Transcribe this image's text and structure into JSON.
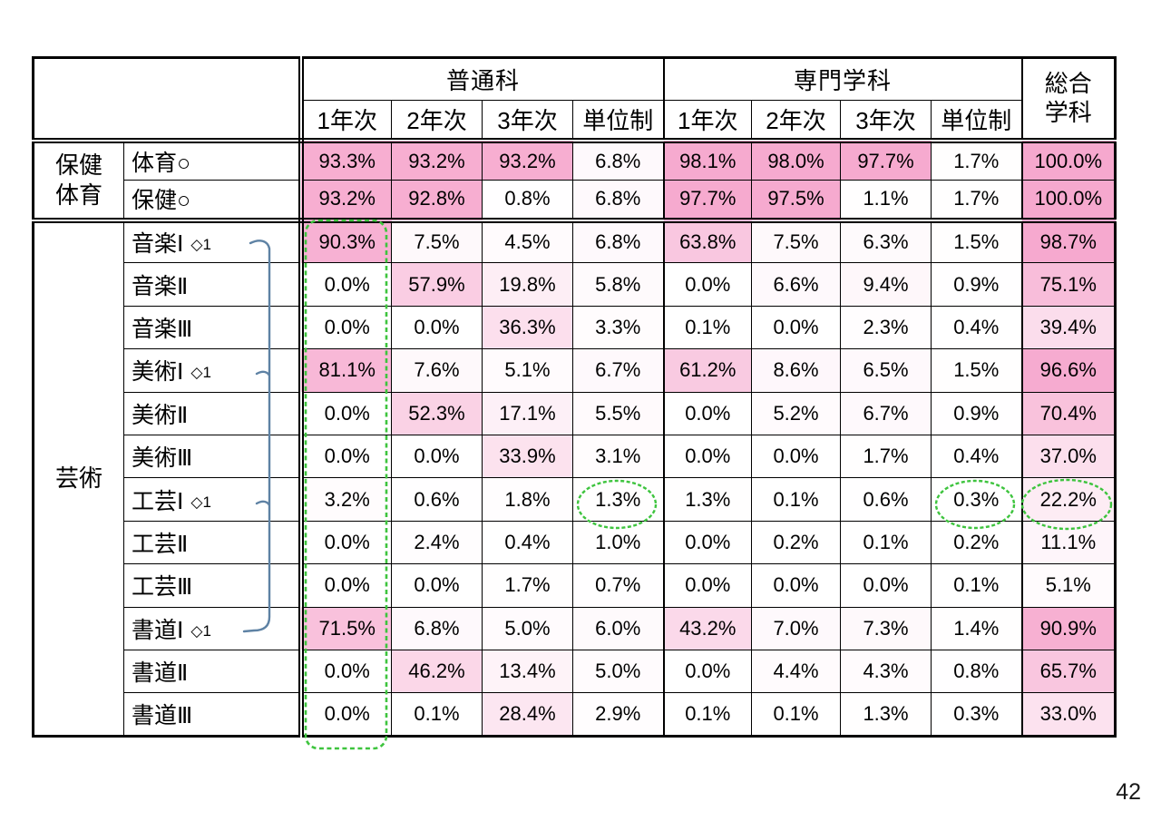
{
  "page": {
    "number": "42"
  },
  "table": {
    "heat_rgb": "246,168,206",
    "col_groups": [
      {
        "label": "普通科",
        "cols": [
          "1年次",
          "2年次",
          "3年次",
          "単位制"
        ]
      },
      {
        "label": "専門学科",
        "cols": [
          "1年次",
          "2年次",
          "3年次",
          "単位制"
        ]
      },
      {
        "label_line1": "総合",
        "label_line2": "学科"
      }
    ],
    "row_groups": [
      {
        "label_lines": [
          "保健",
          "体育"
        ],
        "rows": [
          {
            "label": "体育○",
            "values": [
              "93.3%",
              "93.2%",
              "93.2%",
              "6.8%",
              "98.1%",
              "98.0%",
              "97.7%",
              "1.7%",
              "100.0%"
            ]
          },
          {
            "label": "保健○",
            "values": [
              "93.2%",
              "92.8%",
              "0.8%",
              "6.8%",
              "97.7%",
              "97.5%",
              "1.1%",
              "1.7%",
              "100.0%"
            ]
          }
        ]
      },
      {
        "label_lines": [
          "芸術"
        ],
        "rows": [
          {
            "label": "音楽Ⅰ",
            "marker": "◇1",
            "values": [
              "90.3%",
              "7.5%",
              "4.5%",
              "6.8%",
              "63.8%",
              "7.5%",
              "6.3%",
              "1.5%",
              "98.7%"
            ]
          },
          {
            "label": "音楽Ⅱ",
            "values": [
              "0.0%",
              "57.9%",
              "19.8%",
              "5.8%",
              "0.0%",
              "6.6%",
              "9.4%",
              "0.9%",
              "75.1%"
            ]
          },
          {
            "label": "音楽Ⅲ",
            "values": [
              "0.0%",
              "0.0%",
              "36.3%",
              "3.3%",
              "0.1%",
              "0.0%",
              "2.3%",
              "0.4%",
              "39.4%"
            ]
          },
          {
            "label": "美術Ⅰ",
            "marker": "◇1",
            "values": [
              "81.1%",
              "7.6%",
              "5.1%",
              "6.7%",
              "61.2%",
              "8.6%",
              "6.5%",
              "1.5%",
              "96.6%"
            ]
          },
          {
            "label": "美術Ⅱ",
            "values": [
              "0.0%",
              "52.3%",
              "17.1%",
              "5.5%",
              "0.0%",
              "5.2%",
              "6.7%",
              "0.9%",
              "70.4%"
            ]
          },
          {
            "label": "美術Ⅲ",
            "values": [
              "0.0%",
              "0.0%",
              "33.9%",
              "3.1%",
              "0.0%",
              "0.0%",
              "1.7%",
              "0.4%",
              "37.0%"
            ]
          },
          {
            "label": "工芸Ⅰ",
            "marker": "◇1",
            "values": [
              "3.2%",
              "0.6%",
              "1.8%",
              "1.3%",
              "1.3%",
              "0.1%",
              "0.6%",
              "0.3%",
              "22.2%"
            ]
          },
          {
            "label": "工芸Ⅱ",
            "values": [
              "0.0%",
              "2.4%",
              "0.4%",
              "1.0%",
              "0.0%",
              "0.2%",
              "0.1%",
              "0.2%",
              "11.1%"
            ]
          },
          {
            "label": "工芸Ⅲ",
            "values": [
              "0.0%",
              "0.0%",
              "1.7%",
              "0.7%",
              "0.0%",
              "0.0%",
              "0.0%",
              "0.1%",
              "5.1%"
            ]
          },
          {
            "label": "書道Ⅰ",
            "marker": "◇1",
            "values": [
              "71.5%",
              "6.8%",
              "5.0%",
              "6.0%",
              "43.2%",
              "7.0%",
              "7.3%",
              "1.4%",
              "90.9%"
            ]
          },
          {
            "label": "書道Ⅱ",
            "values": [
              "0.0%",
              "46.2%",
              "13.4%",
              "5.0%",
              "0.0%",
              "4.4%",
              "4.3%",
              "0.8%",
              "65.7%"
            ]
          },
          {
            "label": "書道Ⅲ",
            "values": [
              "0.0%",
              "0.1%",
              "28.4%",
              "2.9%",
              "0.1%",
              "0.1%",
              "1.3%",
              "0.3%",
              "33.0%"
            ]
          }
        ]
      }
    ]
  },
  "annotations": {
    "green": "#3ec43e",
    "blue": "#5e82a4",
    "column_box": {
      "column": "普通科 1年次",
      "rows": "音楽Ⅰ〜書道Ⅲ"
    },
    "circled_values": [
      "1.3%",
      "0.3%",
      "22.2%"
    ],
    "bracket_rows": [
      "音楽Ⅰ",
      "美術Ⅰ",
      "工芸Ⅰ",
      "書道Ⅰ"
    ]
  }
}
